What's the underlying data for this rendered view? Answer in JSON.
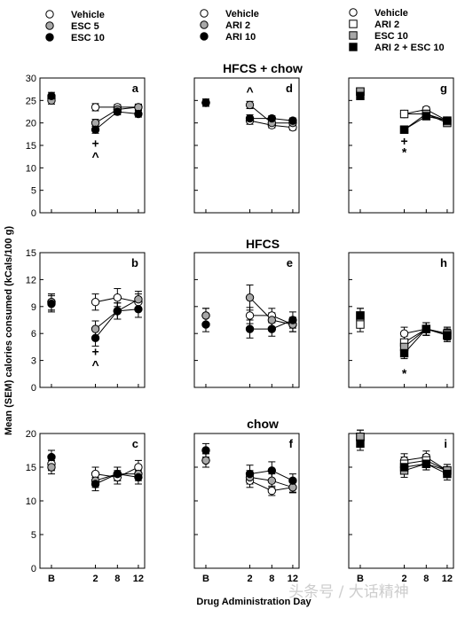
{
  "figure": {
    "ylabel": "Mean (SEM) calories consumed (kCals/100 g)",
    "xlabel": "Drug Administration Day",
    "xticks": [
      "B",
      "2",
      "8",
      "12"
    ],
    "row_titles": [
      "HFCS + chow",
      "HFCS",
      "chow"
    ],
    "watermark": "头条号 / 大话精神"
  },
  "legends": [
    [
      {
        "label": "Vehicle",
        "marker": "circle",
        "fill": "#ffffff"
      },
      {
        "label": "ESC 5",
        "marker": "circle",
        "fill": "#a8a8a8"
      },
      {
        "label": "ESC 10",
        "marker": "circle",
        "fill": "#000000"
      }
    ],
    [
      {
        "label": "Vehicle",
        "marker": "circle",
        "fill": "#ffffff"
      },
      {
        "label": "ARI 2",
        "marker": "circle",
        "fill": "#a8a8a8"
      },
      {
        "label": "ARI 10",
        "marker": "circle",
        "fill": "#000000"
      }
    ],
    [
      {
        "label": "Vehicle",
        "marker": "circle",
        "fill": "#ffffff"
      },
      {
        "label": "ARI 2",
        "marker": "square",
        "fill": "#ffffff"
      },
      {
        "label": "ESC 10",
        "marker": "square",
        "fill": "#a8a8a8"
      },
      {
        "label": "ARI 2 + ESC 10",
        "marker": "square",
        "fill": "#000000"
      }
    ]
  ],
  "chart_data": [
    {
      "type": "line",
      "panel": "a",
      "row": 0,
      "col": 0,
      "ylim": [
        0,
        30
      ],
      "yticks": [
        0,
        5,
        10,
        15,
        20,
        25,
        30
      ],
      "x": [
        "B",
        "2",
        "8",
        "12"
      ],
      "series": [
        {
          "name": "Vehicle",
          "marker": "circle",
          "fill": "#ffffff",
          "values": [
            25.5,
            23.5,
            23.5,
            23.5
          ],
          "sem": [
            0.8,
            0.8,
            0.6,
            0.6
          ]
        },
        {
          "name": "ESC 5",
          "marker": "circle",
          "fill": "#a8a8a8",
          "values": [
            25,
            20,
            23,
            23.5
          ],
          "sem": [
            0.8,
            0.8,
            0.7,
            0.7
          ]
        },
        {
          "name": "ESC 10",
          "marker": "circle",
          "fill": "#000000",
          "values": [
            26,
            18.5,
            22.5,
            22
          ],
          "sem": [
            0.8,
            0.8,
            0.7,
            0.7
          ]
        }
      ],
      "annotations": [
        {
          "x": "2",
          "y": 15.5,
          "text": "+"
        },
        {
          "x": "2",
          "y": 12.5,
          "text": "^"
        }
      ]
    },
    {
      "type": "line",
      "panel": "d",
      "row": 0,
      "col": 1,
      "ylim": [
        0,
        30
      ],
      "yticks": [
        0,
        5,
        10,
        15,
        20,
        25,
        30
      ],
      "x": [
        "B",
        "2",
        "8",
        "12"
      ],
      "series": [
        {
          "name": "Vehicle",
          "marker": "circle",
          "fill": "#ffffff",
          "values": [
            24.5,
            20.5,
            19.5,
            19
          ],
          "sem": [
            0.8,
            0.8,
            0.6,
            0.6
          ]
        },
        {
          "name": "ARI 2",
          "marker": "circle",
          "fill": "#a8a8a8",
          "values": [
            24.5,
            24,
            20,
            20
          ],
          "sem": [
            0.8,
            0.8,
            0.6,
            0.6
          ]
        },
        {
          "name": "ARI 10",
          "marker": "circle",
          "fill": "#000000",
          "values": [
            24.5,
            21,
            21,
            20.5
          ],
          "sem": [
            0.8,
            0.8,
            0.6,
            0.6
          ]
        }
      ],
      "annotations": [
        {
          "x": "2",
          "y": 27,
          "text": "^"
        }
      ]
    },
    {
      "type": "line",
      "panel": "g",
      "row": 0,
      "col": 2,
      "ylim": [
        0,
        30
      ],
      "yticks": [
        0,
        5,
        10,
        15,
        20,
        25,
        30
      ],
      "x": [
        "B",
        "2",
        "8",
        "12"
      ],
      "series": [
        {
          "name": "Vehicle",
          "marker": "circle",
          "fill": "#ffffff",
          "values": [
            27,
            22,
            23,
            20.5
          ],
          "sem": [
            0.8,
            0.8,
            0.6,
            0.6
          ]
        },
        {
          "name": "ARI 2",
          "marker": "square",
          "fill": "#ffffff",
          "values": [
            27,
            22,
            22,
            20.5
          ],
          "sem": [
            0.8,
            0.8,
            0.6,
            0.6
          ]
        },
        {
          "name": "ESC 10",
          "marker": "square",
          "fill": "#a8a8a8",
          "values": [
            27,
            18.5,
            22,
            20
          ],
          "sem": [
            0.8,
            0.8,
            0.6,
            0.6
          ]
        },
        {
          "name": "ARI 2 + ESC 10",
          "marker": "square",
          "fill": "#000000",
          "values": [
            26,
            18.5,
            21.5,
            20.5
          ],
          "sem": [
            0.8,
            0.8,
            0.6,
            0.6
          ]
        }
      ],
      "annotations": [
        {
          "x": "2",
          "y": 16,
          "text": "+"
        },
        {
          "x": "2",
          "y": 13.5,
          "text": "*"
        }
      ]
    },
    {
      "type": "line",
      "panel": "b",
      "row": 1,
      "col": 0,
      "ylim": [
        0,
        15
      ],
      "yticks": [
        0,
        3,
        6,
        9,
        12,
        15
      ],
      "x": [
        "B",
        "2",
        "8",
        "12"
      ],
      "series": [
        {
          "name": "Vehicle",
          "marker": "circle",
          "fill": "#ffffff",
          "values": [
            9.5,
            9.5,
            10,
            9.5
          ],
          "sem": [
            0.9,
            0.9,
            1.0,
            0.9
          ]
        },
        {
          "name": "ESC 5",
          "marker": "circle",
          "fill": "#a8a8a8",
          "values": [
            9.5,
            6.5,
            8.5,
            9.8
          ],
          "sem": [
            0.9,
            0.9,
            0.9,
            0.9
          ]
        },
        {
          "name": "ESC 10",
          "marker": "circle",
          "fill": "#000000",
          "values": [
            9.3,
            5.5,
            8.5,
            8.7
          ],
          "sem": [
            0.9,
            0.9,
            0.9,
            0.9
          ]
        }
      ],
      "annotations": [
        {
          "x": "2",
          "y": 4.0,
          "text": "+"
        },
        {
          "x": "2",
          "y": 2.5,
          "text": "^"
        }
      ]
    },
    {
      "type": "line",
      "panel": "e",
      "row": 1,
      "col": 1,
      "ylim": [
        0,
        15
      ],
      "yticks": [
        0,
        3,
        6,
        9,
        12,
        15
      ],
      "x": [
        "B",
        "2",
        "8",
        "12"
      ],
      "series": [
        {
          "name": "Vehicle",
          "marker": "circle",
          "fill": "#ffffff",
          "values": [
            8,
            8,
            8,
            7
          ],
          "sem": [
            0.8,
            0.9,
            0.8,
            0.8
          ]
        },
        {
          "name": "ARI 2",
          "marker": "circle",
          "fill": "#a8a8a8",
          "values": [
            8,
            10,
            7.5,
            7
          ],
          "sem": [
            0.8,
            1.4,
            0.8,
            0.8
          ]
        },
        {
          "name": "ARI 10",
          "marker": "circle",
          "fill": "#000000",
          "values": [
            7,
            6.5,
            6.5,
            7.5
          ],
          "sem": [
            0.8,
            1.0,
            0.8,
            0.9
          ]
        }
      ],
      "annotations": []
    },
    {
      "type": "line",
      "panel": "h",
      "row": 1,
      "col": 2,
      "ylim": [
        0,
        15
      ],
      "yticks": [
        0,
        3,
        6,
        9,
        12,
        15
      ],
      "x": [
        "B",
        "2",
        "8",
        "12"
      ],
      "series": [
        {
          "name": "Vehicle",
          "marker": "circle",
          "fill": "#ffffff",
          "values": [
            7.5,
            6,
            6.5,
            6
          ],
          "sem": [
            0.8,
            0.7,
            0.7,
            0.7
          ]
        },
        {
          "name": "ARI 2",
          "marker": "square",
          "fill": "#ffffff",
          "values": [
            7,
            5,
            6.5,
            5.8
          ],
          "sem": [
            0.8,
            0.7,
            0.7,
            0.7
          ]
        },
        {
          "name": "ESC 10",
          "marker": "square",
          "fill": "#a8a8a8",
          "values": [
            8,
            4.5,
            6.5,
            6
          ],
          "sem": [
            0.8,
            0.7,
            0.7,
            0.7
          ]
        },
        {
          "name": "ARI 2 + ESC 10",
          "marker": "square",
          "fill": "#000000",
          "values": [
            8,
            3.8,
            6.5,
            5.8
          ],
          "sem": [
            0.8,
            0.6,
            0.7,
            0.7
          ]
        }
      ],
      "annotations": [
        {
          "x": "2",
          "y": 1.6,
          "text": "*"
        }
      ]
    },
    {
      "type": "line",
      "panel": "c",
      "row": 2,
      "col": 0,
      "ylim": [
        0,
        20
      ],
      "yticks": [
        0,
        5,
        10,
        15,
        20
      ],
      "x": [
        "B",
        "2",
        "8",
        "12"
      ],
      "series": [
        {
          "name": "Vehicle",
          "marker": "circle",
          "fill": "#ffffff",
          "values": [
            15.5,
            14,
            13.5,
            15
          ],
          "sem": [
            1.0,
            1.0,
            1.0,
            1.0
          ]
        },
        {
          "name": "ESC 5",
          "marker": "circle",
          "fill": "#a8a8a8",
          "values": [
            15,
            13,
            14,
            14
          ],
          "sem": [
            1.0,
            1.0,
            1.0,
            1.0
          ]
        },
        {
          "name": "ESC 10",
          "marker": "circle",
          "fill": "#000000",
          "values": [
            16.5,
            12.5,
            14,
            13.5
          ],
          "sem": [
            1.0,
            1.0,
            1.0,
            1.0
          ]
        }
      ],
      "annotations": []
    },
    {
      "type": "line",
      "panel": "f",
      "row": 2,
      "col": 1,
      "ylim": [
        0,
        20
      ],
      "yticks": [
        0,
        5,
        10,
        15,
        20
      ],
      "x": [
        "B",
        "2",
        "8",
        "12"
      ],
      "series": [
        {
          "name": "Vehicle",
          "marker": "circle",
          "fill": "#ffffff",
          "values": [
            16,
            13,
            11.5,
            12
          ],
          "sem": [
            1.0,
            1.0,
            0.7,
            0.7
          ]
        },
        {
          "name": "ARI 2",
          "marker": "circle",
          "fill": "#a8a8a8",
          "values": [
            16,
            13.5,
            13,
            12
          ],
          "sem": [
            1.0,
            1.0,
            1.0,
            0.8
          ]
        },
        {
          "name": "ARI 10",
          "marker": "circle",
          "fill": "#000000",
          "values": [
            17.5,
            14,
            14.5,
            13
          ],
          "sem": [
            1.0,
            1.3,
            1.3,
            1.0
          ]
        }
      ],
      "annotations": []
    },
    {
      "type": "line",
      "panel": "i",
      "row": 2,
      "col": 2,
      "ylim": [
        0,
        20
      ],
      "yticks": [
        0,
        5,
        10,
        15,
        20
      ],
      "x": [
        "B",
        "2",
        "8",
        "12"
      ],
      "series": [
        {
          "name": "Vehicle",
          "marker": "circle",
          "fill": "#ffffff",
          "values": [
            19,
            16,
            16.5,
            14.5
          ],
          "sem": [
            1.0,
            1.0,
            0.9,
            0.9
          ]
        },
        {
          "name": "ARI 2",
          "marker": "square",
          "fill": "#ffffff",
          "values": [
            19.5,
            15.5,
            16,
            14.5
          ],
          "sem": [
            1.0,
            1.0,
            0.9,
            0.9
          ]
        },
        {
          "name": "ESC 10",
          "marker": "square",
          "fill": "#a8a8a8",
          "values": [
            19.5,
            14.5,
            15.5,
            14.5
          ],
          "sem": [
            1.0,
            1.0,
            0.9,
            0.9
          ]
        },
        {
          "name": "ARI 2 + ESC 10",
          "marker": "square",
          "fill": "#000000",
          "values": [
            18.5,
            15,
            15.5,
            14
          ],
          "sem": [
            1.0,
            1.0,
            0.9,
            0.9
          ]
        }
      ],
      "annotations": []
    }
  ]
}
